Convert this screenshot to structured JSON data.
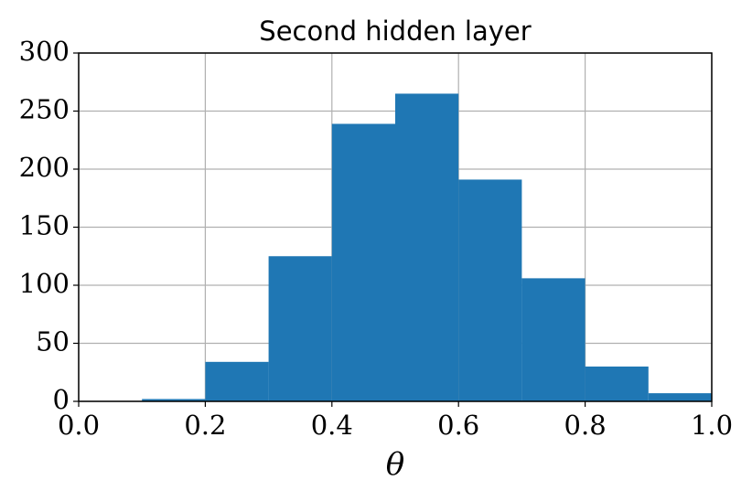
{
  "chart_data": {
    "type": "histogram",
    "title": "Second hidden layer",
    "x_label": "θ",
    "bins": [
      0.0,
      0.1,
      0.2,
      0.3,
      0.4,
      0.5,
      0.6,
      0.7,
      0.8,
      0.9,
      1.0
    ],
    "values": [
      0,
      2,
      34,
      125,
      239,
      265,
      191,
      106,
      30,
      7
    ],
    "color": "#1f77b4",
    "xlim": [
      0.0,
      1.0
    ],
    "xticks": [
      {
        "value": 0.0,
        "label": "0.0"
      },
      0.2,
      0.4,
      0.6,
      0.8,
      {
        "value": 1.0,
        "label": "1.0"
      }
    ],
    "ylim": [
      0,
      300
    ],
    "yticks": [
      0,
      50,
      100,
      150,
      200,
      250,
      300
    ],
    "grid": true
  }
}
